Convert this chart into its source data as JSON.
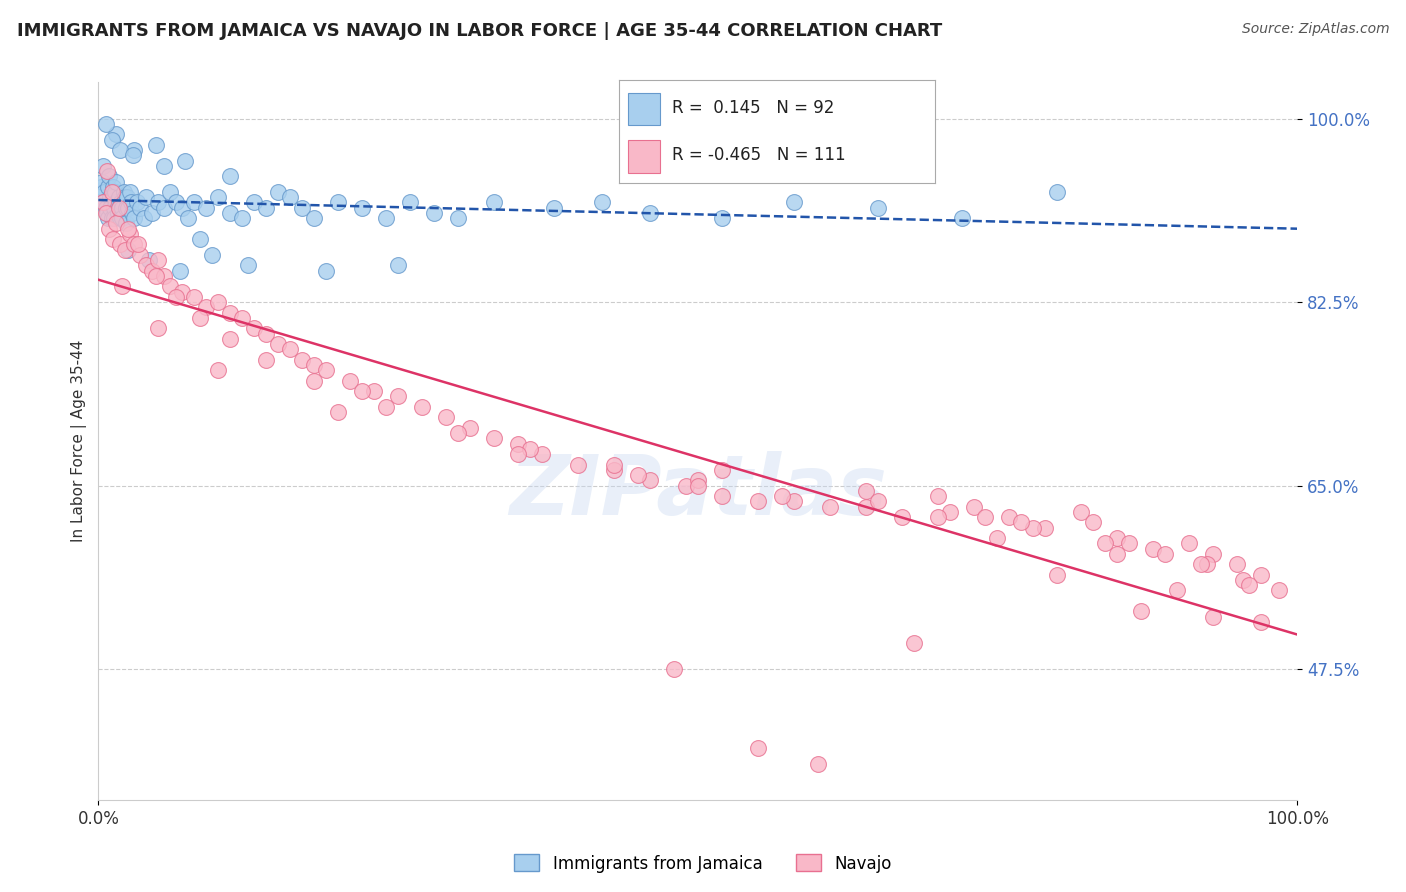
{
  "title": "IMMIGRANTS FROM JAMAICA VS NAVAJO IN LABOR FORCE | AGE 35-44 CORRELATION CHART",
  "source": "Source: ZipAtlas.com",
  "ylabel": "In Labor Force | Age 35-44",
  "yticks": [
    47.5,
    65.0,
    82.5,
    100.0
  ],
  "ytick_labels": [
    "47.5%",
    "65.0%",
    "82.5%",
    "100.0%"
  ],
  "xmin": 0.0,
  "xmax": 100.0,
  "ymin": 35.0,
  "ymax": 103.5,
  "jamaica_color": "#A8CFEE",
  "navajo_color": "#F9B8C8",
  "jamaica_edge": "#6699CC",
  "navajo_edge": "#E87090",
  "jamaica_trend_color": "#2255AA",
  "navajo_trend_color": "#DD3366",
  "legend_R_jamaica": "R =  0.145",
  "legend_N_jamaica": "N = 92",
  "legend_R_navajo": "R = -0.465",
  "legend_N_navajo": "N = 111",
  "watermark": "ZIPatlas",
  "jamaica_x": [
    0.2,
    0.3,
    0.4,
    0.5,
    0.5,
    0.6,
    0.7,
    0.8,
    0.8,
    0.9,
    1.0,
    1.0,
    1.1,
    1.2,
    1.2,
    1.3,
    1.3,
    1.4,
    1.5,
    1.5,
    1.6,
    1.7,
    1.7,
    1.8,
    1.9,
    2.0,
    2.0,
    2.1,
    2.2,
    2.3,
    2.3,
    2.4,
    2.5,
    2.6,
    2.7,
    2.8,
    3.0,
    3.2,
    3.5,
    3.8,
    4.0,
    4.5,
    5.0,
    5.5,
    6.0,
    6.5,
    7.0,
    7.5,
    8.0,
    9.0,
    10.0,
    11.0,
    12.0,
    13.0,
    14.0,
    15.0,
    16.0,
    17.0,
    18.0,
    20.0,
    22.0,
    24.0,
    26.0,
    28.0,
    30.0,
    33.0,
    38.0,
    42.0,
    46.0,
    52.0,
    58.0,
    65.0,
    72.0,
    80.0,
    2.5,
    4.2,
    6.8,
    9.5,
    1.5,
    3.0,
    5.5,
    8.5,
    12.5,
    19.0,
    25.0,
    0.6,
    1.1,
    1.8,
    2.9,
    4.8,
    7.2,
    11.0
  ],
  "jamaica_y": [
    93.5,
    94.0,
    95.5,
    93.0,
    92.0,
    91.5,
    91.0,
    90.5,
    93.5,
    94.5,
    92.5,
    91.5,
    90.5,
    93.5,
    92.5,
    91.5,
    90.5,
    93.0,
    94.0,
    92.0,
    91.0,
    92.5,
    91.5,
    90.5,
    92.0,
    91.5,
    90.5,
    93.0,
    92.5,
    91.5,
    90.0,
    92.5,
    91.5,
    93.0,
    92.0,
    91.0,
    90.5,
    92.0,
    91.5,
    90.5,
    92.5,
    91.0,
    92.0,
    91.5,
    93.0,
    92.0,
    91.5,
    90.5,
    92.0,
    91.5,
    92.5,
    91.0,
    90.5,
    92.0,
    91.5,
    93.0,
    92.5,
    91.5,
    90.5,
    92.0,
    91.5,
    90.5,
    92.0,
    91.0,
    90.5,
    92.0,
    91.5,
    92.0,
    91.0,
    90.5,
    92.0,
    91.5,
    90.5,
    93.0,
    87.5,
    86.5,
    85.5,
    87.0,
    98.5,
    97.0,
    95.5,
    88.5,
    86.0,
    85.5,
    86.0,
    99.5,
    98.0,
    97.0,
    96.5,
    97.5,
    96.0,
    94.5
  ],
  "navajo_x": [
    0.4,
    0.6,
    0.9,
    1.2,
    1.5,
    1.8,
    2.2,
    2.6,
    3.0,
    3.5,
    4.0,
    4.5,
    5.0,
    5.5,
    6.0,
    7.0,
    8.0,
    9.0,
    10.0,
    11.0,
    12.0,
    13.0,
    14.0,
    15.0,
    16.0,
    17.0,
    18.0,
    19.0,
    21.0,
    23.0,
    25.0,
    27.0,
    29.0,
    31.0,
    33.0,
    35.0,
    37.0,
    40.0,
    43.0,
    46.0,
    49.0,
    52.0,
    55.0,
    58.0,
    61.0,
    64.0,
    67.0,
    70.0,
    73.0,
    76.0,
    79.0,
    82.0,
    85.0,
    88.0,
    91.0,
    93.0,
    95.0,
    97.0,
    98.5,
    0.7,
    1.1,
    1.7,
    2.5,
    3.3,
    4.8,
    6.5,
    8.5,
    11.0,
    14.0,
    18.0,
    24.0,
    30.0,
    36.0,
    43.0,
    50.0,
    57.0,
    64.0,
    71.0,
    78.0,
    84.0,
    89.0,
    92.5,
    95.5,
    2.0,
    5.0,
    10.0,
    20.0,
    35.0,
    50.0,
    65.0,
    77.0,
    86.0,
    92.0,
    96.0,
    48.0,
    68.0,
    80.0,
    90.0,
    55.0,
    75.0,
    85.0,
    93.0,
    22.0,
    45.0,
    70.0,
    87.0,
    52.0,
    74.0,
    83.0,
    97.0,
    60.0
  ],
  "navajo_y": [
    92.0,
    91.0,
    89.5,
    88.5,
    90.0,
    88.0,
    87.5,
    89.0,
    88.0,
    87.0,
    86.0,
    85.5,
    86.5,
    85.0,
    84.0,
    83.5,
    83.0,
    82.0,
    82.5,
    81.5,
    81.0,
    80.0,
    79.5,
    78.5,
    78.0,
    77.0,
    76.5,
    76.0,
    75.0,
    74.0,
    73.5,
    72.5,
    71.5,
    70.5,
    69.5,
    69.0,
    68.0,
    67.0,
    66.5,
    65.5,
    65.0,
    64.0,
    63.5,
    63.5,
    63.0,
    64.5,
    62.0,
    64.0,
    63.0,
    62.0,
    61.0,
    62.5,
    60.0,
    59.0,
    59.5,
    58.5,
    57.5,
    56.5,
    55.0,
    95.0,
    93.0,
    91.5,
    89.5,
    88.0,
    85.0,
    83.0,
    81.0,
    79.0,
    77.0,
    75.0,
    72.5,
    70.0,
    68.5,
    67.0,
    65.5,
    64.0,
    63.0,
    62.5,
    61.0,
    59.5,
    58.5,
    57.5,
    56.0,
    84.0,
    80.0,
    76.0,
    72.0,
    68.0,
    65.0,
    63.5,
    61.5,
    59.5,
    57.5,
    55.5,
    47.5,
    50.0,
    56.5,
    55.0,
    40.0,
    60.0,
    58.5,
    52.5,
    74.0,
    66.0,
    62.0,
    53.0,
    66.5,
    62.0,
    61.5,
    52.0,
    38.5
  ]
}
